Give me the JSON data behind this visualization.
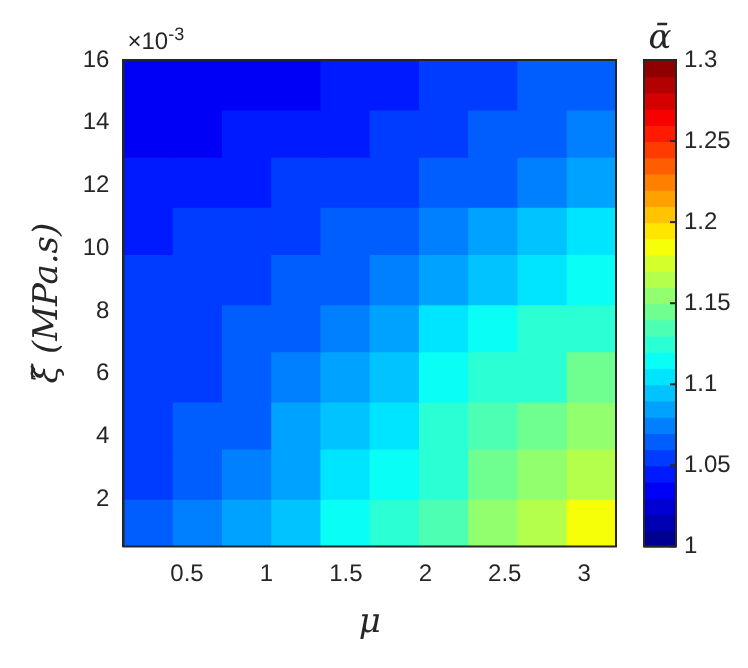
{
  "chart_data": {
    "type": "scatter",
    "marker": "square",
    "xlabel": "μ",
    "ylabel": "ξ̃ (MPa.s)",
    "clabel": "ᾱ",
    "annotations": [
      "×10$^{-3}$"
    ],
    "xlim": [
      0.1,
      3.2
    ],
    "xticks": [
      0.5,
      1,
      1.5,
      2,
      2.5,
      3
    ],
    "ylim": [
      0.5,
      16
    ],
    "yticks": [
      2,
      4,
      6,
      8,
      10,
      12,
      14,
      16
    ],
    "clim": [
      1,
      1.3
    ],
    "cticks": [
      1,
      1.05,
      1.1,
      1.15,
      1.2,
      1.25,
      1.3
    ],
    "x": [
      0.26,
      0.57,
      0.88,
      1.19,
      1.5,
      1.81,
      2.12,
      2.43,
      2.74,
      3.05,
      0.26,
      0.57,
      0.88,
      1.19,
      1.5,
      1.81,
      2.12,
      2.43,
      2.74,
      3.05,
      0.26,
      0.57,
      0.88,
      1.19,
      1.5,
      1.81,
      2.12,
      2.43,
      2.74,
      3.05,
      0.26,
      0.57,
      0.88,
      1.19,
      1.5,
      1.81,
      2.12,
      2.43,
      2.74,
      3.05,
      0.26,
      0.57,
      0.88,
      1.19,
      1.5,
      1.81,
      2.12,
      2.43,
      2.74,
      3.05,
      0.26,
      0.57,
      0.88,
      1.19,
      1.5,
      1.81,
      2.12,
      2.43,
      2.74,
      3.05,
      0.26,
      0.57,
      0.88,
      1.19,
      1.5,
      1.81,
      2.12,
      2.43,
      2.74,
      3.05,
      0.26,
      0.57,
      0.88,
      1.19,
      1.5,
      1.81,
      2.12,
      2.43,
      2.74,
      3.05,
      0.26,
      0.57,
      0.88,
      1.19,
      1.5,
      1.81,
      2.12,
      2.43,
      2.74,
      3.05,
      0.26,
      0.57,
      0.88,
      1.19,
      1.5,
      1.81,
      2.12,
      2.43,
      2.74,
      3.05
    ],
    "values": [
      1.3,
      1.3,
      1.3,
      1.3,
      1.3,
      1.3,
      1.3,
      1.3,
      1.3,
      1.3,
      2.8,
      2.8,
      2.8,
      2.8,
      2.8,
      2.8,
      2.8,
      2.8,
      2.8,
      2.8,
      4.4,
      4.4,
      4.4,
      4.4,
      4.4,
      4.4,
      4.4,
      4.4,
      4.4,
      4.4,
      5.9,
      5.9,
      5.9,
      5.9,
      5.9,
      5.9,
      5.9,
      5.9,
      5.9,
      5.9,
      7.5,
      7.5,
      7.5,
      7.5,
      7.5,
      7.5,
      7.5,
      7.5,
      7.5,
      7.5,
      9,
      9,
      9,
      9,
      9,
      9,
      9,
      9,
      9,
      9,
      10.6,
      10.6,
      10.6,
      10.6,
      10.6,
      10.6,
      10.6,
      10.6,
      10.6,
      10.6,
      12.1,
      12.1,
      12.1,
      12.1,
      12.1,
      12.1,
      12.1,
      12.1,
      12.1,
      12.1,
      13.7,
      13.7,
      13.7,
      13.7,
      13.7,
      13.7,
      13.7,
      13.7,
      13.7,
      13.7,
      15.2,
      15.2,
      15.2,
      15.2,
      15.2,
      15.2,
      15.2,
      15.2,
      15.2,
      15.2
    ],
    "cvalues": [
      1.06,
      1.07,
      1.08,
      1.095,
      1.11,
      1.125,
      1.14,
      1.155,
      1.17,
      1.185,
      1.055,
      1.06,
      1.075,
      1.085,
      1.1,
      1.115,
      1.13,
      1.145,
      1.16,
      1.17,
      1.05,
      1.06,
      1.065,
      1.08,
      1.09,
      1.105,
      1.12,
      1.135,
      1.145,
      1.16,
      1.05,
      1.055,
      1.06,
      1.07,
      1.08,
      1.095,
      1.11,
      1.12,
      1.13,
      1.145,
      1.05,
      1.05,
      1.06,
      1.065,
      1.075,
      1.085,
      1.1,
      1.11,
      1.12,
      1.13,
      1.05,
      1.05,
      1.055,
      1.06,
      1.065,
      1.075,
      1.085,
      1.095,
      1.105,
      1.115,
      1.045,
      1.05,
      1.05,
      1.055,
      1.06,
      1.065,
      1.07,
      1.08,
      1.09,
      1.1,
      1.04,
      1.045,
      1.045,
      1.05,
      1.05,
      1.055,
      1.06,
      1.065,
      1.07,
      1.08,
      1.035,
      1.035,
      1.04,
      1.04,
      1.045,
      1.05,
      1.055,
      1.06,
      1.065,
      1.07,
      1.03,
      1.03,
      1.03,
      1.035,
      1.04,
      1.045,
      1.05,
      1.055,
      1.06,
      1.065
    ]
  }
}
